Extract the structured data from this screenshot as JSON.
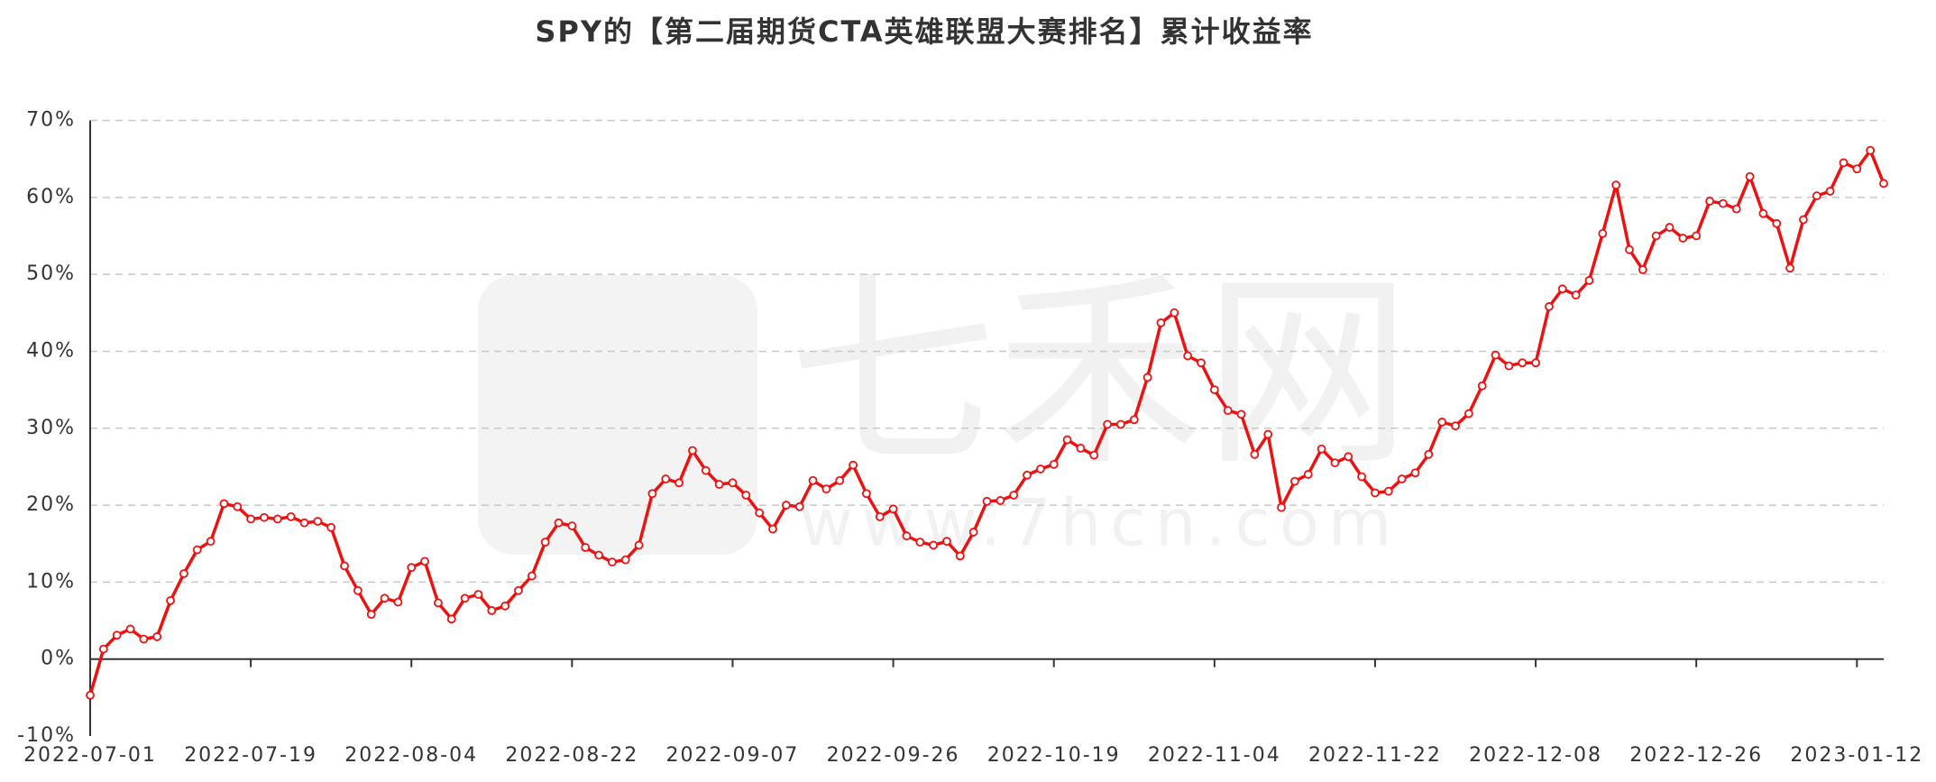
{
  "chart_data": {
    "type": "line",
    "title": "SPY的【第二届期货CTA英雄联盟大赛排名】累计收益率",
    "watermark": "七禾网",
    "watermark_url": "www.7hcn.com",
    "categories": [
      "2022-07-01",
      null,
      null,
      null,
      null,
      null,
      null,
      null,
      null,
      null,
      null,
      null,
      "2022-07-19",
      null,
      null,
      null,
      null,
      null,
      null,
      null,
      null,
      null,
      null,
      null,
      "2022-08-04",
      null,
      null,
      null,
      null,
      null,
      null,
      null,
      null,
      null,
      null,
      null,
      "2022-08-22",
      null,
      null,
      null,
      null,
      null,
      null,
      null,
      null,
      null,
      null,
      null,
      "2022-09-07",
      null,
      null,
      null,
      null,
      null,
      null,
      null,
      null,
      null,
      null,
      null,
      "2022-09-26",
      null,
      null,
      null,
      null,
      null,
      null,
      null,
      null,
      null,
      null,
      null,
      "2022-10-19",
      null,
      null,
      null,
      null,
      null,
      null,
      null,
      null,
      null,
      null,
      null,
      "2022-11-04",
      null,
      null,
      null,
      null,
      null,
      null,
      null,
      null,
      null,
      null,
      null,
      "2022-11-22",
      null,
      null,
      null,
      null,
      null,
      null,
      null,
      null,
      null,
      null,
      null,
      "2022-12-08",
      null,
      null,
      null,
      null,
      null,
      null,
      null,
      null,
      null,
      null,
      null,
      "2022-12-26",
      null,
      null,
      null,
      null,
      null,
      null,
      null,
      null,
      null,
      null,
      null,
      "2023-01-12",
      null,
      null
    ],
    "series": [
      {
        "name": "SPY",
        "color": "#ee1111",
        "values": [
          -4.7,
          1.3,
          3.1,
          3.9,
          2.6,
          2.9,
          7.6,
          11.1,
          14.2,
          15.3,
          20.2,
          19.8,
          18.2,
          18.4,
          18.2,
          18.5,
          17.7,
          17.9,
          17.1,
          12.1,
          8.9,
          5.8,
          7.9,
          7.4,
          11.9,
          12.7,
          7.3,
          5.2,
          7.9,
          8.4,
          6.3,
          6.9,
          8.9,
          10.8,
          15.2,
          17.7,
          17.3,
          14.5,
          13.5,
          12.6,
          12.9,
          14.8,
          21.5,
          23.4,
          22.9,
          27.1,
          24.5,
          22.7,
          22.9,
          21.3,
          19.0,
          16.9,
          20.0,
          19.8,
          23.2,
          22.1,
          23.2,
          25.2,
          21.5,
          18.5,
          19.5,
          16.0,
          15.2,
          14.8,
          15.3,
          13.4,
          16.5,
          20.5,
          20.6,
          21.3,
          23.9,
          24.7,
          25.3,
          28.5,
          27.4,
          26.5,
          30.5,
          30.5,
          31.1,
          36.6,
          43.7,
          45.0,
          39.4,
          38.5,
          35.0,
          32.3,
          31.8,
          26.6,
          29.2,
          19.7,
          23.1,
          24.0,
          27.3,
          25.5,
          26.3,
          23.7,
          21.6,
          21.8,
          23.4,
          24.2,
          26.6,
          30.8,
          30.3,
          31.9,
          35.5,
          39.5,
          38.1,
          38.5,
          38.5,
          45.8,
          48.1,
          47.3,
          49.2,
          55.3,
          61.6,
          53.2,
          50.6,
          55.0,
          56.1,
          54.7,
          55.0,
          59.5,
          59.2,
          58.5,
          62.7,
          57.9,
          56.6,
          50.8,
          57.1,
          60.2,
          60.8,
          64.5,
          63.7,
          66.1,
          61.8
        ]
      }
    ],
    "ylim": [
      -10,
      70
    ],
    "yticks": [
      {
        "value": -10,
        "label": "-10%"
      },
      {
        "value": 0,
        "label": "0%"
      },
      {
        "value": 10,
        "label": "10%"
      },
      {
        "value": 20,
        "label": "20%"
      },
      {
        "value": 30,
        "label": "30%"
      },
      {
        "value": 40,
        "label": "40%"
      },
      {
        "value": 50,
        "label": "50%"
      },
      {
        "value": 60,
        "label": "60%"
      },
      {
        "value": 70,
        "label": "70%"
      }
    ],
    "grid": true
  }
}
